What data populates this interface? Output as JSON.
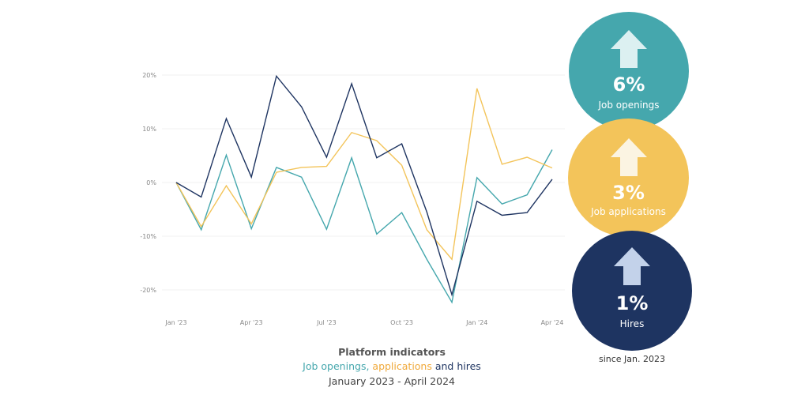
{
  "chart_data": {
    "type": "line",
    "title": "Platform indicators",
    "subtitle_parts": [
      "Job openings",
      ", ",
      "applications",
      " and hires"
    ],
    "date_range": "January 2023 - April 2024",
    "x": [
      "Jan '23",
      "Feb '23",
      "Mar '23",
      "Apr '23",
      "May '23",
      "Jun '23",
      "Jul '23",
      "Aug '23",
      "Sep '23",
      "Oct '23",
      "Nov '23",
      "Dec '23",
      "Jan '24",
      "Feb '24",
      "Mar '24",
      "Apr '24"
    ],
    "x_tick_labels": [
      "Jan '23",
      "Apr '23",
      "Jul '23",
      "Oct '23",
      "Jan '24",
      "Apr '24"
    ],
    "y_ticks": [
      20,
      10,
      0,
      -10,
      -20
    ],
    "y_tick_labels": [
      "20%",
      "10%",
      "0%",
      "-10%",
      "-20%"
    ],
    "ylim": [
      -25,
      22
    ],
    "series": [
      {
        "name": "Job openings",
        "color": "#45a7ad",
        "values": [
          0,
          -8.8,
          5.1,
          -8.6,
          2.8,
          1.0,
          -8.7,
          4.6,
          -9.6,
          -5.6,
          -14.3,
          -22.3,
          0.9,
          -4.0,
          -2.3,
          6.1
        ]
      },
      {
        "name": "Job applications",
        "color": "#f3c45a",
        "values": [
          0,
          -8.2,
          -0.6,
          -7.7,
          1.9,
          2.8,
          3.0,
          9.3,
          7.8,
          3.2,
          -8.8,
          -14.3,
          17.5,
          3.4,
          4.7,
          2.7
        ]
      },
      {
        "name": "Hires",
        "color": "#1e3461",
        "values": [
          0,
          -2.7,
          11.9,
          1.0,
          19.8,
          14.1,
          4.7,
          18.4,
          4.6,
          7.2,
          -5.5,
          -20.9,
          -3.5,
          -6.1,
          -5.6,
          0.6
        ]
      }
    ]
  },
  "summary": [
    {
      "pct": "6%",
      "label": "Job openings",
      "color": "#45a7ad",
      "arrow": "#dcf0f1"
    },
    {
      "pct": "3%",
      "label": "Job applications",
      "color": "#f3c45a",
      "arrow": "#fbf4e2"
    },
    {
      "pct": "1%",
      "label": "Hires",
      "color": "#1e3461",
      "arrow": "#c3d2ea"
    }
  ],
  "since": "since Jan. 2023"
}
